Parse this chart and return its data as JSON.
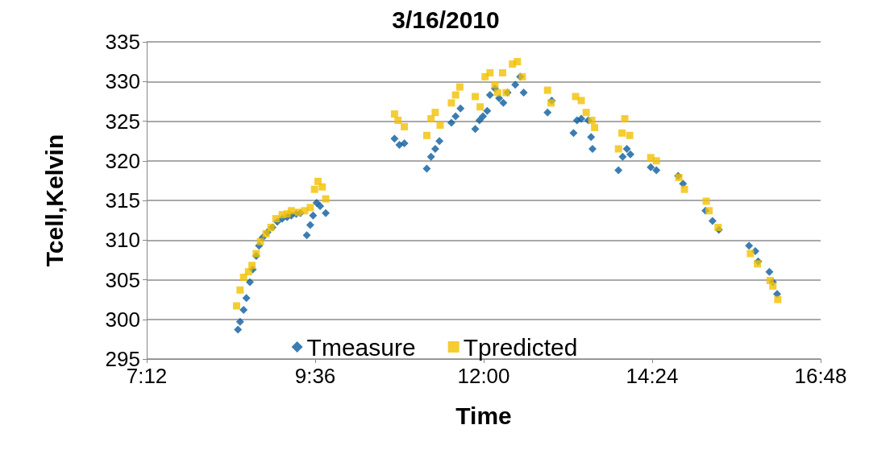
{
  "chart_data": {
    "type": "scatter",
    "title": "3/16/2010",
    "xlabel": "Time",
    "ylabel": "Tcell,Kelvin",
    "xlim": [
      7.2,
      16.8
    ],
    "xticks": [
      {
        "value": 7.2,
        "label": "7:12"
      },
      {
        "value": 9.6,
        "label": "9:36"
      },
      {
        "value": 12,
        "label": "12:00"
      },
      {
        "value": 14.4,
        "label": "14:24"
      },
      {
        "value": 16.8,
        "label": "16:48"
      }
    ],
    "ylim": [
      295,
      335
    ],
    "yticks": [
      295,
      300,
      305,
      310,
      315,
      320,
      325,
      330,
      335
    ],
    "grid": "y",
    "legend": "bottom",
    "series": [
      {
        "name": "Tmeasure",
        "color": "#0b5c9e",
        "marker": "diamond",
        "x": [
          8.5,
          8.53,
          8.58,
          8.62,
          8.67,
          8.71,
          8.76,
          8.8,
          8.85,
          8.92,
          8.99,
          9.06,
          9.13,
          9.2,
          9.26,
          9.33,
          9.39,
          9.48,
          9.53,
          9.57,
          9.62,
          9.67,
          9.75,
          10.73,
          10.8,
          10.87,
          11.19,
          11.25,
          11.31,
          11.37,
          11.54,
          11.6,
          11.67,
          11.88,
          11.94,
          11.99,
          12.05,
          12.09,
          12.16,
          12.22,
          12.28,
          12.34,
          12.45,
          12.52,
          12.57,
          12.91,
          12.97,
          13.28,
          13.33,
          13.39,
          13.49,
          13.53,
          13.55,
          13.92,
          13.98,
          14.04,
          14.09,
          14.38,
          14.46,
          14.77,
          14.84,
          15.16,
          15.26,
          15.35,
          15.78,
          15.87,
          15.91,
          16.07,
          16.12,
          16.18
        ],
        "values": [
          298.7,
          299.7,
          301.2,
          302.7,
          304.7,
          306.3,
          308,
          309.3,
          310.3,
          311,
          311.6,
          312.3,
          312.7,
          312.9,
          313.1,
          313.3,
          313.4,
          310.6,
          311.9,
          313.1,
          314.7,
          314.3,
          313.4,
          322.8,
          322,
          322.2,
          319,
          320.5,
          321.5,
          322.5,
          324.8,
          325.6,
          326.6,
          324,
          325.1,
          325.6,
          326.3,
          328.3,
          329.1,
          327.9,
          327.3,
          328.6,
          329.6,
          330.6,
          328.6,
          326.1,
          327.6,
          323.5,
          325.1,
          325.3,
          325.1,
          323,
          321.5,
          318.8,
          320.5,
          321.5,
          320.8,
          319.2,
          318.8,
          318.1,
          317.1,
          313.7,
          312.4,
          311.3,
          309.3,
          308.6,
          307.3,
          306,
          304.7,
          303.2
        ]
      },
      {
        "name": "Tpredicted",
        "color": "#f2c100",
        "marker": "square",
        "x": [
          8.48,
          8.53,
          8.58,
          8.65,
          8.7,
          8.76,
          8.82,
          8.9,
          8.97,
          9.04,
          9.13,
          9.2,
          9.26,
          9.36,
          9.45,
          9.53,
          9.59,
          9.64,
          9.7,
          9.75,
          10.73,
          10.78,
          10.87,
          11.19,
          11.25,
          11.31,
          11.38,
          11.54,
          11.6,
          11.66,
          11.88,
          11.95,
          12.02,
          12.09,
          12.16,
          12.2,
          12.27,
          12.32,
          12.41,
          12.48,
          12.55,
          12.91,
          12.96,
          13.31,
          13.39,
          13.46,
          13.54,
          13.58,
          13.92,
          13.97,
          14.01,
          14.08,
          14.38,
          14.46,
          14.78,
          14.86,
          15.17,
          15.21,
          15.34,
          15.8,
          15.9,
          16.08,
          16.12,
          16.19
        ],
        "values": [
          301.7,
          303.7,
          305.3,
          306,
          306.8,
          308.3,
          309.8,
          310.8,
          311.6,
          312.7,
          313.2,
          313.3,
          313.7,
          313.5,
          313.7,
          314.1,
          316.4,
          317.4,
          316.7,
          315.2,
          325.9,
          325.1,
          324.3,
          323.2,
          325.3,
          326.1,
          324.5,
          327.3,
          328.3,
          329.3,
          328.1,
          326.8,
          330.6,
          331.1,
          329.6,
          328.6,
          331.1,
          328.6,
          332.2,
          332.5,
          330.6,
          328.9,
          327.3,
          328.1,
          327.6,
          326.1,
          325.1,
          324.2,
          321.5,
          323.5,
          325.3,
          323.2,
          320.4,
          320,
          317.9,
          316.4,
          314.9,
          313.7,
          311.6,
          308.3,
          307,
          304.9,
          304.2,
          302.5
        ]
      }
    ]
  }
}
